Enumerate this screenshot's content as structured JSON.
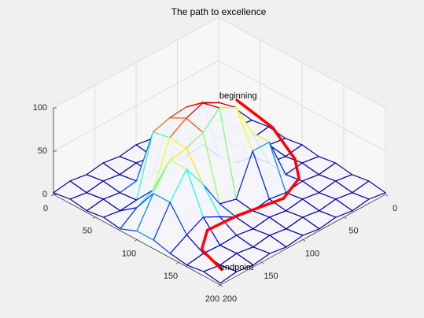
{
  "chart_data": {
    "type": "surface3d",
    "title": "The path to excellence",
    "x": [
      0,
      20,
      40,
      60,
      80,
      100,
      120,
      140,
      160,
      180,
      200
    ],
    "y": [
      0,
      20,
      40,
      60,
      80,
      100,
      120,
      140,
      160,
      180,
      200
    ],
    "z": [
      [
        2,
        5,
        2,
        5,
        2,
        5,
        2,
        5,
        2,
        5,
        2
      ],
      [
        5,
        2,
        5,
        2,
        5,
        2,
        5,
        2,
        5,
        2,
        5
      ],
      [
        2,
        5,
        2,
        5,
        2,
        5,
        2,
        5,
        2,
        5,
        2
      ],
      [
        5,
        2,
        5,
        2,
        5,
        50,
        50,
        2,
        5,
        2,
        5
      ],
      [
        2,
        5,
        2,
        75,
        85,
        90,
        50,
        5,
        2,
        5,
        2
      ],
      [
        5,
        2,
        5,
        80,
        95,
        100,
        5,
        2,
        5,
        2,
        5
      ],
      [
        2,
        5,
        2,
        78,
        88,
        82,
        10,
        5,
        2,
        5,
        2
      ],
      [
        5,
        2,
        5,
        72,
        76,
        74,
        43,
        16,
        5,
        2,
        5
      ],
      [
        2,
        5,
        2,
        4,
        26,
        71,
        71,
        26,
        4,
        5,
        2
      ],
      [
        5,
        2,
        5,
        2,
        16,
        43,
        43,
        16,
        5,
        2,
        5
      ],
      [
        2,
        5,
        2,
        5,
        2,
        10,
        10,
        5,
        2,
        5,
        2
      ]
    ],
    "colormap": "jet",
    "path": {
      "color": "#ff0000",
      "x": [
        102,
        125,
        135,
        140,
        143,
        134,
        132,
        150,
        184
      ],
      "y": [
        81,
        61,
        44,
        44,
        66,
        113,
        147,
        172,
        182
      ],
      "z": [
        100,
        70,
        30,
        10,
        0,
        0,
        0,
        0,
        0
      ]
    },
    "annotations": [
      {
        "text": "beginning",
        "x": 87,
        "y": 87,
        "z": 100
      },
      {
        "text": "endpoint",
        "x": 181,
        "y": 181,
        "z": 0
      }
    ],
    "xlim": [
      0,
      200
    ],
    "ylim": [
      0,
      200
    ],
    "zlim": [
      0,
      100
    ],
    "xticks": [
      0,
      50,
      100,
      150,
      200
    ],
    "yticks": [
      0,
      50,
      100,
      150,
      200
    ],
    "zticks": [
      0,
      50,
      100
    ],
    "grid": true
  }
}
